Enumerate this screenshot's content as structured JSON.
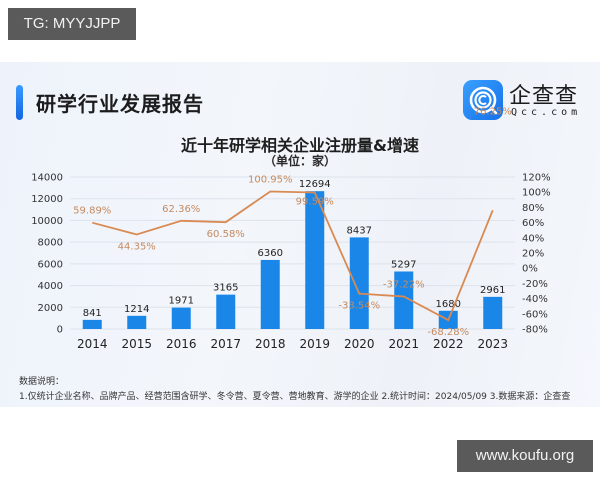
{
  "watermarks": {
    "top": "TG: MYYJJPP",
    "bottom": "www.koufu.org"
  },
  "header": {
    "title": "研学行业发展报告",
    "logo": {
      "cn": "企查查",
      "en": "Qcc.com"
    }
  },
  "colors": {
    "bar": "#1a86e8",
    "line": "#d98a52",
    "pct_label": "#c58a5f",
    "accent": "#1f7cf0"
  },
  "chart_data": {
    "type": "bar+line",
    "title": "近十年研学相关企业注册量&增速",
    "subtitle": "（单位：家）",
    "categories": [
      "2014",
      "2015",
      "2016",
      "2017",
      "2018",
      "2019",
      "2020",
      "2021",
      "2022",
      "2023"
    ],
    "series": [
      {
        "name": "注册量",
        "type": "bar",
        "axis": "left",
        "values": [
          841,
          1214,
          1971,
          3165,
          6360,
          12694,
          8437,
          5297,
          1680,
          2961
        ]
      },
      {
        "name": "增速",
        "type": "line",
        "axis": "right",
        "values": [
          59.89,
          44.35,
          62.36,
          60.58,
          100.95,
          99.59,
          -33.54,
          -37.22,
          -68.28,
          76.25
        ],
        "labels": [
          "59.89%",
          "44.35%",
          "62.36%",
          "60.58%",
          "100.95%",
          "99.59%",
          "-33.54%",
          "-37.22%",
          "-68.28%",
          "76.25%"
        ]
      }
    ],
    "left_axis": {
      "ticks": [
        "0",
        "2000",
        "4000",
        "6000",
        "8000",
        "10000",
        "12000",
        "14000"
      ],
      "ylim": [
        0,
        14000
      ]
    },
    "right_axis": {
      "ticks": [
        "-80%",
        "-60%",
        "-40%",
        "-20%",
        "0%",
        "20%",
        "40%",
        "60%",
        "80%",
        "100%",
        "120%"
      ],
      "ylim": [
        -80,
        120
      ]
    },
    "grid": true,
    "legend": "none"
  },
  "notes": {
    "title": "数据说明：",
    "body": "1.仅统计企业名称、品牌产品、经营范围含研学、冬令营、夏令营、营地教育、游学的企业   2.统计时间：2024/05/09    3.数据来源：企查查"
  }
}
